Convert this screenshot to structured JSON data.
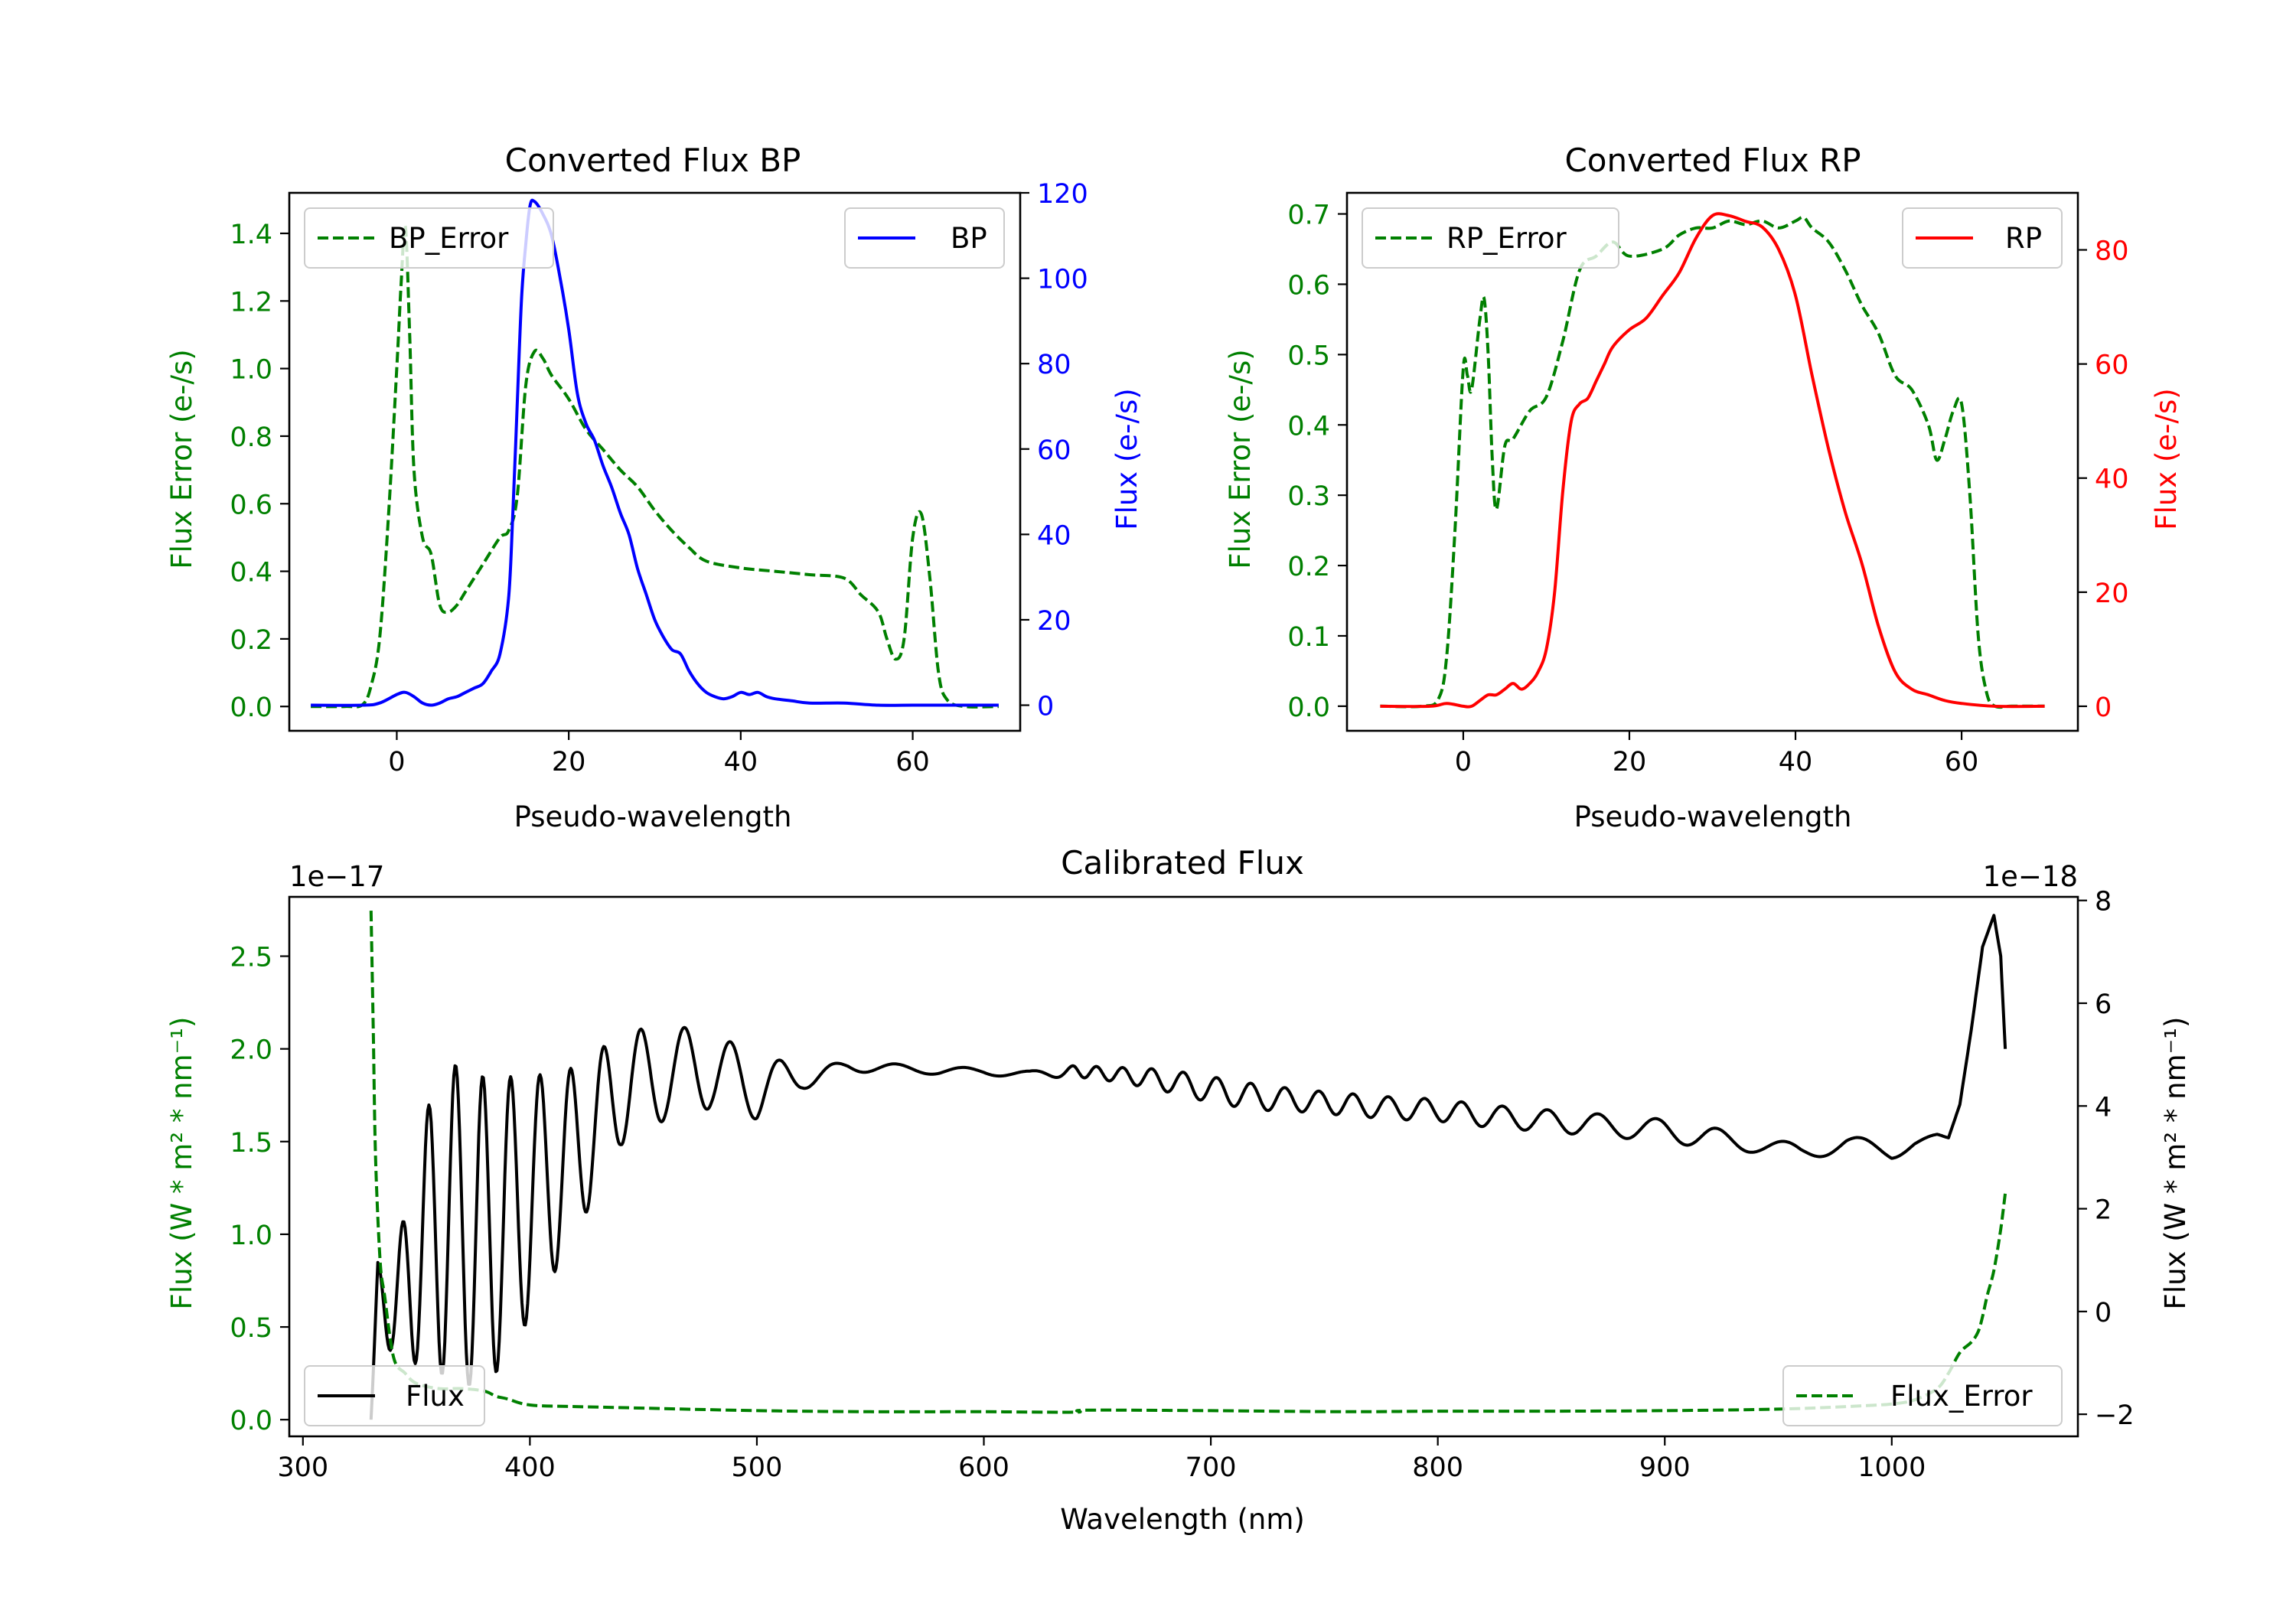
{
  "colors": {
    "blue": "#0000ff",
    "green": "#008000",
    "red": "#ff0000",
    "black": "#000000"
  },
  "chart_data": [
    {
      "id": "bp",
      "type": "line",
      "title": "Converted Flux BP",
      "xlabel": "Pseudo-wavelength",
      "ylabel_left": "Flux Error (e-/s)",
      "ylabel_right": "Flux (e-/s)",
      "xlim": [
        -12.5,
        72.5
      ],
      "ylim_left": [
        -0.072,
        1.52
      ],
      "ylim_right": [
        -6,
        120
      ],
      "xticks": [
        0,
        20,
        40,
        60
      ],
      "yticks_left": [
        0.0,
        0.2,
        0.4,
        0.6,
        0.8,
        1.0,
        1.2,
        1.4
      ],
      "yticks_right": [
        0,
        20,
        40,
        60,
        80,
        100,
        120
      ],
      "ytick_labels_left": [
        "0.0",
        "0.2",
        "0.4",
        "0.6",
        "0.8",
        "1.0",
        "1.2",
        "1.4"
      ],
      "ytick_labels_right": [
        "0",
        "20",
        "40",
        "60",
        "80",
        "100",
        "120"
      ],
      "legend_left": "BP_Error",
      "legend_right": "BP",
      "series": [
        {
          "name": "BP_Error",
          "axis": "left",
          "color": "#008000",
          "style": "dashed",
          "x": [
            -10,
            -6,
            -4,
            -3,
            -2,
            -1,
            0,
            0.5,
            1,
            1.5,
            2,
            3,
            4,
            5,
            6,
            7,
            8,
            10,
            12,
            13,
            14,
            15,
            16,
            17,
            18,
            20,
            22,
            24,
            26,
            28,
            30,
            32,
            34,
            36,
            40,
            44,
            48,
            52,
            54,
            56,
            57,
            58,
            59,
            60,
            61,
            62,
            63,
            64,
            66,
            70
          ],
          "y": [
            0.0,
            0.0,
            0.005,
            0.06,
            0.2,
            0.55,
            1.0,
            1.25,
            1.42,
            1.1,
            0.7,
            0.5,
            0.45,
            0.3,
            0.28,
            0.3,
            0.34,
            0.42,
            0.5,
            0.52,
            0.62,
            0.95,
            1.05,
            1.03,
            0.98,
            0.91,
            0.82,
            0.76,
            0.7,
            0.65,
            0.58,
            0.52,
            0.47,
            0.43,
            0.41,
            0.4,
            0.39,
            0.38,
            0.33,
            0.28,
            0.2,
            0.14,
            0.2,
            0.5,
            0.57,
            0.38,
            0.1,
            0.02,
            0.0,
            0.0
          ]
        },
        {
          "name": "BP",
          "axis": "right",
          "color": "#0000ff",
          "style": "solid",
          "x": [
            -10,
            -4,
            -2,
            0,
            1,
            2,
            3,
            4,
            5,
            6,
            7,
            8,
            9,
            10,
            11,
            12,
            13,
            13.5,
            14,
            14.5,
            15,
            15.5,
            16,
            17,
            18,
            19,
            20,
            21,
            22,
            23,
            24,
            25,
            26,
            27,
            28,
            29,
            30,
            31,
            32,
            33,
            34,
            35,
            36,
            37,
            38,
            39,
            40,
            41,
            42,
            43,
            44,
            46,
            48,
            52,
            56,
            60,
            64,
            70
          ],
          "y": [
            0,
            0,
            0.5,
            2.5,
            3,
            2,
            0.5,
            0,
            0.5,
            1.5,
            2,
            3,
            4,
            5,
            8,
            12,
            25,
            45,
            70,
            95,
            108,
            117,
            118,
            115,
            110,
            100,
            88,
            73,
            66,
            62,
            56,
            51,
            45,
            40,
            32,
            26,
            20,
            16,
            13,
            12,
            8,
            5,
            3,
            2,
            1.5,
            2,
            3,
            2.5,
            3,
            2,
            1.5,
            1,
            0.5,
            0.5,
            0,
            0,
            0,
            0
          ]
        }
      ]
    },
    {
      "id": "rp",
      "type": "line",
      "title": "Converted Flux RP",
      "xlabel": "Pseudo-wavelength",
      "ylabel_left": "Flux Error (e-/s)",
      "ylabel_right": "Flux (e-/s)",
      "xlim": [
        -14,
        74
      ],
      "ylim_left": [
        -0.035,
        0.73
      ],
      "ylim_right": [
        -4.3,
        90
      ],
      "xticks": [
        0,
        20,
        40,
        60
      ],
      "yticks_left": [
        0.0,
        0.1,
        0.2,
        0.3,
        0.4,
        0.5,
        0.6,
        0.7
      ],
      "yticks_right": [
        0,
        20,
        40,
        60,
        80
      ],
      "ytick_labels_left": [
        "0.0",
        "0.1",
        "0.2",
        "0.3",
        "0.4",
        "0.5",
        "0.6",
        "0.7"
      ],
      "ytick_labels_right": [
        "0",
        "20",
        "40",
        "60",
        "80"
      ],
      "legend_left": "RP_Error",
      "legend_right": "RP",
      "series": [
        {
          "name": "RP_Error",
          "axis": "left",
          "color": "#008000",
          "style": "dashed",
          "x": [
            -10,
            -5,
            -3,
            -2,
            -1,
            0,
            0.5,
            1,
            2,
            2.5,
            3,
            3.5,
            4,
            5,
            6,
            8,
            10,
            12,
            14,
            16,
            18,
            20,
            24,
            26,
            28,
            30,
            32,
            34,
            36,
            38,
            40,
            41,
            42,
            44,
            46,
            48,
            50,
            52,
            54,
            56,
            57,
            58,
            59,
            60,
            61,
            62,
            63,
            64,
            66,
            70
          ],
          "y": [
            0.0,
            0.0,
            0.01,
            0.07,
            0.25,
            0.48,
            0.47,
            0.45,
            0.55,
            0.58,
            0.5,
            0.35,
            0.28,
            0.37,
            0.38,
            0.42,
            0.44,
            0.52,
            0.62,
            0.64,
            0.66,
            0.64,
            0.65,
            0.67,
            0.68,
            0.68,
            0.69,
            0.685,
            0.69,
            0.68,
            0.69,
            0.695,
            0.68,
            0.66,
            0.62,
            0.57,
            0.53,
            0.47,
            0.45,
            0.4,
            0.35,
            0.38,
            0.42,
            0.43,
            0.3,
            0.1,
            0.02,
            0.0,
            0.0,
            0.0
          ]
        },
        {
          "name": "RP",
          "axis": "right",
          "color": "#ff0000",
          "style": "solid",
          "x": [
            -10,
            -4,
            -2,
            0,
            1,
            2,
            3,
            4,
            5,
            6,
            7,
            8,
            9,
            10,
            11,
            12,
            13,
            14,
            15,
            16,
            17,
            18,
            20,
            22,
            24,
            26,
            28,
            30,
            32,
            34,
            36,
            38,
            40,
            42,
            44,
            46,
            48,
            50,
            52,
            54,
            56,
            58,
            60,
            64,
            70
          ],
          "y": [
            0,
            0,
            0.5,
            0,
            0,
            1,
            2,
            2,
            3,
            4,
            3,
            4,
            6,
            10,
            20,
            38,
            50,
            53,
            54,
            57,
            60,
            63,
            66,
            68,
            72,
            76,
            82,
            86,
            86,
            85,
            84,
            80,
            72,
            58,
            45,
            34,
            25,
            14,
            6,
            3,
            2,
            1,
            0.5,
            0,
            0
          ]
        }
      ]
    },
    {
      "id": "cal",
      "type": "line",
      "title": "Calibrated Flux",
      "xlabel": "Wavelength (nm)",
      "ylabel_left": "Flux (W * m² * nm⁻¹)",
      "ylabel_right": "Flux (W * m² * nm⁻¹)",
      "offset_left": "1e−17",
      "offset_right": "1e−18",
      "xlim": [
        294,
        1082
      ],
      "ylim_left": [
        -0.09,
        2.82
      ],
      "ylim_right": [
        -2.43,
        8.07
      ],
      "xticks": [
        300,
        400,
        500,
        600,
        700,
        800,
        900,
        1000
      ],
      "yticks_left": [
        0.0,
        0.5,
        1.0,
        1.5,
        2.0,
        2.5
      ],
      "yticks_right": [
        -2,
        0,
        2,
        4,
        6,
        8
      ],
      "ytick_labels_left": [
        "0.0",
        "0.5",
        "1.0",
        "1.5",
        "2.0",
        "2.5"
      ],
      "ytick_labels_right": [
        "−2",
        "0",
        "2",
        "4",
        "6",
        "8"
      ],
      "legend_left": "Flux",
      "legend_right": "Flux_Error",
      "series": [
        {
          "name": "Flux",
          "axis": "left",
          "color": "#000000",
          "style": "solid",
          "generated": "oscillation",
          "x_range": [
            330,
            1050
          ],
          "knots_x": [
            330,
            333,
            340,
            360,
            380,
            400,
            420,
            440,
            460,
            480,
            500,
            520,
            540,
            560,
            580,
            600,
            620,
            640,
            660,
            680,
            700,
            720,
            740,
            760,
            780,
            800,
            820,
            840,
            860,
            880,
            900,
            920,
            940,
            960,
            980,
            1000,
            1010,
            1020,
            1025,
            1030,
            1035,
            1040,
            1045,
            1048,
            1050
          ],
          "knots_base": [
            0.0,
            0.65,
            0.6,
            1.1,
            1.0,
            1.2,
            1.45,
            1.78,
            1.88,
            1.88,
            1.8,
            1.84,
            1.9,
            1.9,
            1.88,
            1.88,
            1.86,
            1.88,
            1.86,
            1.83,
            1.78,
            1.74,
            1.72,
            1.7,
            1.68,
            1.67,
            1.64,
            1.62,
            1.6,
            1.58,
            1.56,
            1.52,
            1.48,
            1.45,
            1.48,
            1.45,
            1.5,
            1.52,
            1.52,
            1.7,
            2.1,
            2.55,
            2.72,
            2.5,
            2.0
          ],
          "knots_amp": [
            0.0,
            0.2,
            0.25,
            0.85,
            0.85,
            0.65,
            0.45,
            0.3,
            0.26,
            0.2,
            0.18,
            0.06,
            0.03,
            0.02,
            0.02,
            0.02,
            0.02,
            0.03,
            0.04,
            0.06,
            0.07,
            0.07,
            0.06,
            0.06,
            0.06,
            0.06,
            0.06,
            0.06,
            0.06,
            0.06,
            0.06,
            0.06,
            0.04,
            0.04,
            0.05,
            0.05,
            0.03,
            0.02,
            0.0,
            0.0,
            0.0,
            0.0,
            0.0,
            0.0,
            0.0
          ],
          "knots_period": [
            11,
            11,
            11,
            12,
            12,
            13,
            14,
            16,
            20,
            20,
            22,
            24,
            26,
            28,
            30,
            30,
            30,
            10,
            12,
            14,
            15,
            15,
            15,
            15,
            16,
            16,
            18,
            20,
            22,
            26,
            26,
            28,
            30,
            32,
            34,
            36,
            36,
            36,
            36,
            36,
            36,
            36,
            36,
            36,
            36
          ]
        },
        {
          "name": "Flux_Error",
          "axis": "right",
          "color": "#008000",
          "style": "dashed",
          "x": [
            330,
            331,
            332,
            334,
            336,
            340,
            345,
            350,
            360,
            370,
            380,
            385,
            390,
            400,
            420,
            450,
            500,
            550,
            600,
            640,
            645,
            700,
            760,
            800,
            850,
            900,
            950,
            980,
            1000,
            1010,
            1020,
            1025,
            1030,
            1035,
            1038,
            1040,
            1042,
            1045,
            1048,
            1050
          ],
          "y": [
            7.8,
            5.5,
            3.0,
            1.0,
            0.3,
            -0.9,
            -1.2,
            -1.4,
            -1.5,
            -1.5,
            -1.55,
            -1.65,
            -1.7,
            -1.82,
            -1.85,
            -1.88,
            -1.93,
            -1.95,
            -1.95,
            -1.96,
            -1.92,
            -1.93,
            -1.95,
            -1.94,
            -1.94,
            -1.93,
            -1.9,
            -1.85,
            -1.8,
            -1.72,
            -1.5,
            -1.2,
            -0.8,
            -0.6,
            -0.4,
            -0.1,
            0.3,
            0.8,
            1.6,
            2.3
          ]
        }
      ]
    }
  ]
}
